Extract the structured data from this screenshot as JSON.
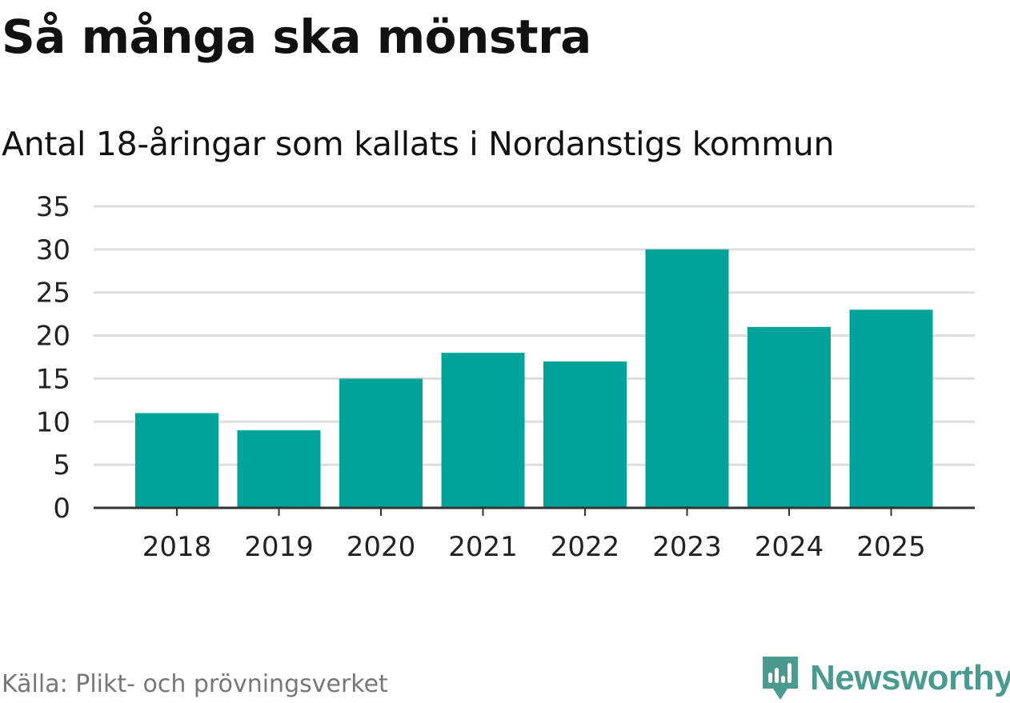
{
  "header": {
    "title": "Så många ska mönstra",
    "subtitle": "Antal 18-åringar som kallats i Nordanstigs kommun"
  },
  "footer": {
    "source": "Källa: Plikt- och prövningsverket",
    "brand": "Newsworthy",
    "brand_icon": "newsworthy-logo-icon"
  },
  "colors": {
    "bar": "#00a399",
    "grid": "#dddddd",
    "axis": "#333333",
    "brand": "#4a9a90"
  },
  "chart_data": {
    "type": "bar",
    "title": "Så många ska mönstra",
    "subtitle": "Antal 18-åringar som kallats i Nordanstigs kommun",
    "categories": [
      "2018",
      "2019",
      "2020",
      "2021",
      "2022",
      "2023",
      "2024",
      "2025"
    ],
    "values": [
      11,
      9,
      15,
      18,
      17,
      30,
      21,
      23
    ],
    "xlabel": "",
    "ylabel": "",
    "ylim": [
      0,
      35
    ],
    "yticks": [
      0,
      5,
      10,
      15,
      20,
      25,
      30,
      35
    ],
    "grid": true,
    "legend": "none"
  }
}
